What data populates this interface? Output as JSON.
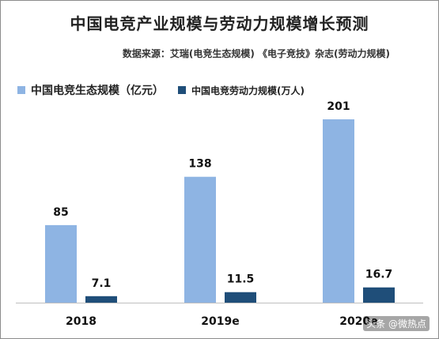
{
  "colors": {
    "series1": "#8eb4e3",
    "series2": "#1f4e79",
    "axis": "#bfbfbf",
    "label": "#111111"
  },
  "watermark": "头条 @微热点",
  "chart_data": {
    "type": "bar",
    "title": "中国电竞产业规模与劳动力规模增长预测",
    "subtitle": "数据来源：艾瑞(电竞生态规模)  《电子竞技》杂志(劳动力规模)",
    "categories": [
      "2018",
      "2019e",
      "2020e"
    ],
    "series": [
      {
        "name": "中国电竞生态规模（亿元）",
        "values": [
          85,
          138,
          201
        ],
        "labels": [
          "85",
          "138",
          "201"
        ]
      },
      {
        "name": "中国电竞劳动力规模(万人)",
        "values": [
          7.1,
          11.5,
          16.7
        ],
        "labels": [
          "7.1",
          "11.5",
          "16.7"
        ]
      }
    ],
    "ylim": [
      0,
      201
    ],
    "legend": "top-left",
    "grid": false
  }
}
